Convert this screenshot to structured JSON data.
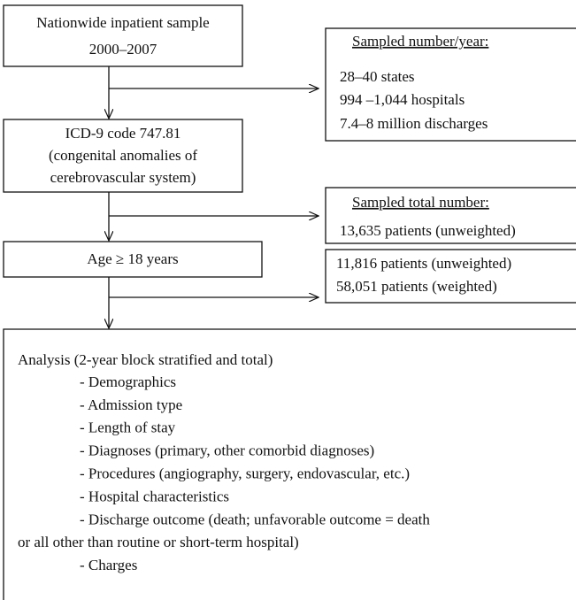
{
  "nodes": [
    {
      "lines": [
        "Nationwide inpatient sample",
        "2000–2007"
      ]
    },
    {
      "title": "Sampled number/year:",
      "lines": [
        "28–40 states",
        "994 –1,044 hospitals",
        "7.4–8 million discharges"
      ]
    },
    {
      "lines": [
        "ICD-9 code 747.81",
        "(congenital anomalies of",
        "cerebrovascular system)"
      ]
    },
    {
      "title": "Sampled total number:",
      "lines": [
        "13,635 patients (unweighted)"
      ]
    },
    {
      "lines": [
        "Age ≥ 18 years"
      ]
    },
    {
      "lines": [
        "11,816 patients (unweighted)",
        "58,051 patients (weighted)"
      ]
    },
    {
      "title": "Analysis (2-year block stratified and total)",
      "items": [
        "- Demographics",
        "- Admission type",
        "- Length of stay",
        "- Diagnoses (primary, other comorbid diagnoses)",
        "- Procedures (angiography, surgery, endovascular, etc.)",
        "- Hospital characteristics",
        "- Discharge outcome (death; unfavorable outcome = death",
        "or all other than routine or short-term hospital)",
        "- Charges"
      ]
    }
  ]
}
